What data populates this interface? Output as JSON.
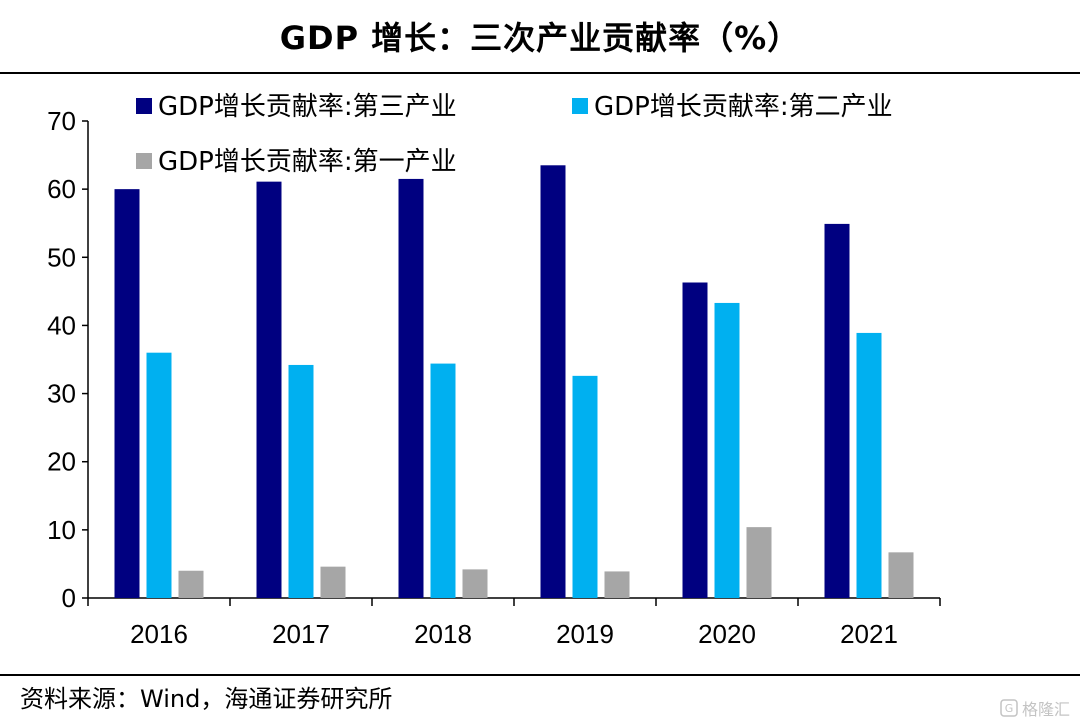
{
  "title": "GDP 增长：三次产业贡献率（%）",
  "source": "资料来源：Wind，海通证券研究所",
  "watermark": "格隆汇",
  "colors": {
    "tertiary": "#000080",
    "secondary": "#00B0F0",
    "primary": "#A6A6A6"
  },
  "chart_data": {
    "type": "bar",
    "title": "GDP 增长：三次产业贡献率（%）",
    "categories": [
      "2016",
      "2017",
      "2018",
      "2019",
      "2020",
      "2021"
    ],
    "series": [
      {
        "name": "GDP增长贡献率:第三产业",
        "color": "#000080",
        "values": [
          60.0,
          61.1,
          61.5,
          63.5,
          46.3,
          54.9
        ]
      },
      {
        "name": "GDP增长贡献率:第二产业",
        "color": "#00B0F0",
        "values": [
          36.0,
          34.2,
          34.4,
          32.6,
          43.3,
          38.9
        ]
      },
      {
        "name": "GDP增长贡献率:第一产业",
        "color": "#A6A6A6",
        "values": [
          4.0,
          4.6,
          4.2,
          3.9,
          10.4,
          6.7
        ]
      }
    ],
    "ylim": [
      0,
      70
    ],
    "yticks": [
      0,
      10,
      20,
      30,
      40,
      50,
      60,
      70
    ],
    "xlabel": "",
    "ylabel": "",
    "grid": false,
    "legend_position": "top"
  }
}
